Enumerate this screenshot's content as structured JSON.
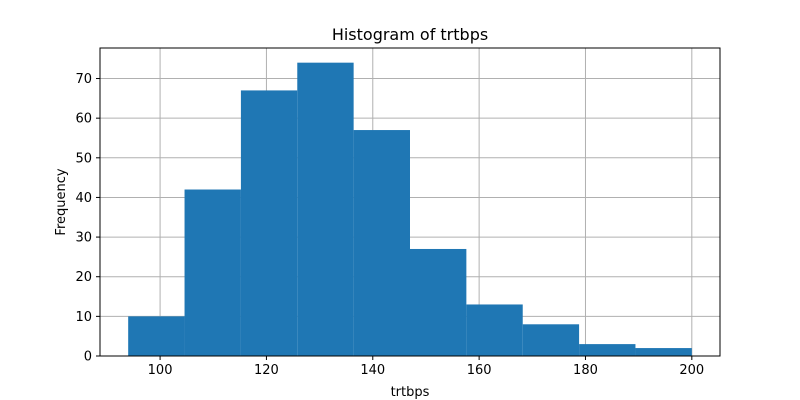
{
  "chart_data": {
    "type": "bar",
    "subtype": "histogram",
    "title": "Histogram of trtbps",
    "xlabel": "trtbps",
    "ylabel": "Frequency",
    "bins": [
      {
        "start": 94.0,
        "end": 104.6,
        "count": 10
      },
      {
        "start": 104.6,
        "end": 115.2,
        "count": 42
      },
      {
        "start": 115.2,
        "end": 125.8,
        "count": 67
      },
      {
        "start": 125.8,
        "end": 136.4,
        "count": 74
      },
      {
        "start": 136.4,
        "end": 147.0,
        "count": 57
      },
      {
        "start": 147.0,
        "end": 157.6,
        "count": 27
      },
      {
        "start": 157.6,
        "end": 168.2,
        "count": 13
      },
      {
        "start": 168.2,
        "end": 178.8,
        "count": 8
      },
      {
        "start": 178.8,
        "end": 189.4,
        "count": 3
      },
      {
        "start": 189.4,
        "end": 200.0,
        "count": 2
      }
    ],
    "xlim": [
      88.7,
      205.3
    ],
    "ylim": [
      0,
      77.7
    ],
    "xticks": [
      100,
      120,
      140,
      160,
      180,
      200
    ],
    "yticks": [
      0,
      10,
      20,
      30,
      40,
      50,
      60,
      70
    ],
    "grid": true,
    "bar_color": "#1f77b4",
    "grid_color": "#b0b0b0"
  }
}
